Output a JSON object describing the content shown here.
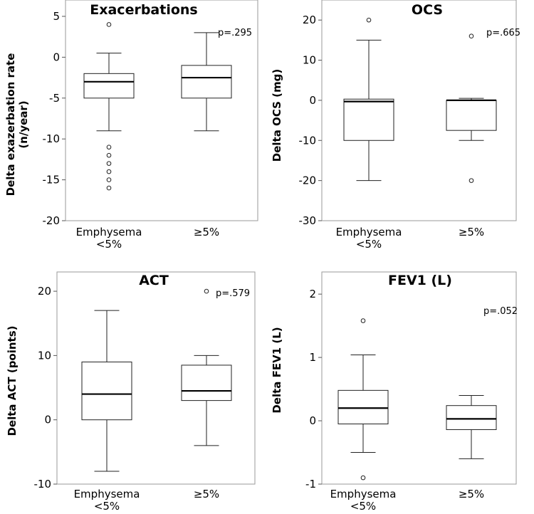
{
  "chart_data": [
    {
      "type": "box",
      "title": "Exacerbations",
      "ylabel": "Delta exazerbation rate (n/year)",
      "ylabel_lines": [
        "Delta exazerbation rate",
        "(n/year)"
      ],
      "ylim": [
        -20,
        7
      ],
      "yticks": [
        5,
        0,
        -5,
        -10,
        -15,
        -20
      ],
      "ytick_labels": [
        "5",
        "0",
        "-5",
        "-10",
        "-15",
        "-20"
      ],
      "categories": [
        "Emphysema <5%",
        "≥5%"
      ],
      "category_lines": [
        [
          "Emphysema",
          "<5%"
        ],
        [
          "≥5%"
        ]
      ],
      "p_value": "p=.295",
      "boxes": [
        {
          "whisker_low": -9,
          "q1": -5,
          "median": -3,
          "q3": -2,
          "whisker_high": 0.5,
          "outliers": [
            4,
            -11,
            -12,
            -13,
            -14,
            -15,
            -16
          ]
        },
        {
          "whisker_low": -9,
          "q1": -5,
          "median": -2.5,
          "q3": -1,
          "whisker_high": 3,
          "outliers": []
        }
      ]
    },
    {
      "type": "box",
      "title": "OCS",
      "ylabel": "Delta OCS (mg)",
      "ylabel_lines": [
        "Delta OCS (mg)"
      ],
      "ylim": [
        -30,
        25
      ],
      "yticks": [
        20,
        10,
        0,
        -10,
        -20,
        -30
      ],
      "ytick_labels": [
        "20",
        "10",
        "0",
        "-10",
        "-20",
        "-30"
      ],
      "categories": [
        "Emphysema <5%",
        "≥5%"
      ],
      "category_lines": [
        [
          "Emphysema",
          "<5%"
        ],
        [
          "≥5%"
        ]
      ],
      "p_value": "p=.665",
      "boxes": [
        {
          "whisker_low": -20,
          "q1": -10,
          "median": -0.3,
          "q3": 0.3,
          "whisker_high": 15,
          "outliers": [
            20
          ]
        },
        {
          "whisker_low": -10,
          "q1": -7.5,
          "median": 0,
          "q3": 0,
          "whisker_high": 0.5,
          "outliers": [
            16,
            -20
          ]
        }
      ]
    },
    {
      "type": "box",
      "title": "ACT",
      "ylabel": "Delta ACT (points)",
      "ylabel_lines": [
        "Delta ACT (points)"
      ],
      "ylim": [
        -10,
        23
      ],
      "yticks": [
        20,
        10,
        0,
        -10
      ],
      "ytick_labels": [
        "20",
        "10",
        "0",
        "-10"
      ],
      "categories": [
        "Emphysema <5%",
        "≥5%"
      ],
      "category_lines": [
        [
          "Emphysema",
          "<5%"
        ],
        [
          "≥5%"
        ]
      ],
      "p_value": "p=.579",
      "boxes": [
        {
          "whisker_low": -8,
          "q1": 0,
          "median": 4,
          "q3": 9,
          "whisker_high": 17,
          "outliers": []
        },
        {
          "whisker_low": -4,
          "q1": 3,
          "median": 4.5,
          "q3": 8.5,
          "whisker_high": 10,
          "outliers": [
            20
          ]
        }
      ]
    },
    {
      "type": "box",
      "title": "FEV1 (L)",
      "ylabel": "Delta FEV1 (L)",
      "ylabel_lines": [
        "Delta FEV1 (L)"
      ],
      "ylim": [
        -1,
        2.35
      ],
      "yticks": [
        2,
        1,
        0,
        -1
      ],
      "ytick_labels": [
        "2",
        "1",
        "0",
        "-1"
      ],
      "categories": [
        "Emphysema <5%",
        "≥5%"
      ],
      "category_lines": [
        [
          "Emphysema",
          "<5%"
        ],
        [
          "≥5%"
        ]
      ],
      "p_value": "p=.052",
      "boxes": [
        {
          "whisker_low": -0.5,
          "q1": -0.05,
          "median": 0.2,
          "q3": 0.48,
          "whisker_high": 1.04,
          "outliers": [
            1.58,
            -0.9
          ]
        },
        {
          "whisker_low": -0.6,
          "q1": -0.14,
          "median": 0.03,
          "q3": 0.24,
          "whisker_high": 0.4,
          "outliers": []
        }
      ]
    }
  ]
}
